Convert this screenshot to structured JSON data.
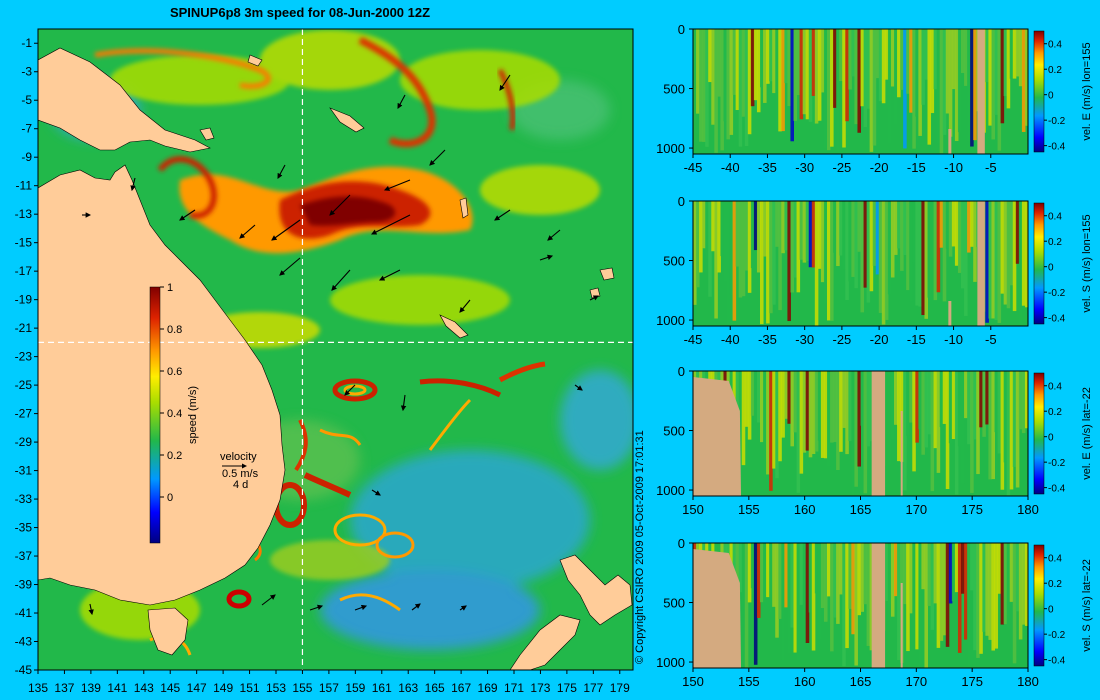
{
  "title": "SPINUP6p8 3m speed for 08-Jun-2000 12Z",
  "copyright": "© Copyright CSIRO 2009   05-Oct-2009 17:01:31",
  "map": {
    "lat_labels": [
      "-1",
      "-3",
      "-5",
      "-7",
      "-9",
      "-11",
      "-13",
      "-15",
      "-17",
      "-19",
      "-21",
      "-23",
      "-25",
      "-27",
      "-29",
      "-31",
      "-33",
      "-35",
      "-37",
      "-39",
      "-41",
      "-43",
      "-45"
    ],
    "lon_labels": [
      "135",
      "137",
      "139",
      "141",
      "143",
      "145",
      "147",
      "149",
      "151",
      "153",
      "155",
      "157",
      "159",
      "161",
      "163",
      "165",
      "167",
      "169",
      "171",
      "173",
      "175",
      "177",
      "179"
    ],
    "lon_range": [
      135,
      180
    ],
    "lat_range": [
      -45,
      0
    ],
    "section_lon": 155,
    "section_lat": -22,
    "colorbar": {
      "label": "speed (m/s)",
      "ticks": [
        "1",
        "0.8",
        "0.6",
        "0.4",
        "0.2",
        "0"
      ],
      "range": [
        0,
        1
      ]
    },
    "velocity_key": {
      "title": "velocity",
      "speed": "0.5 m/s",
      "duration": "4 d"
    },
    "colors": {
      "land": "#ffcc99",
      "background": "#00ccff",
      "ocean_base": "#22b84a"
    }
  },
  "sections": [
    {
      "id": "vel-e-lon155",
      "ylabel": "vel. E (m/s)  lon=155",
      "x_labels": [
        "-45",
        "-40",
        "-35",
        "-30",
        "-25",
        "-20",
        "-15",
        "-10",
        "-5"
      ],
      "x_values": [
        -45,
        -40,
        -35,
        -30,
        -25,
        -20,
        -15,
        -10,
        -5
      ],
      "x_range": [
        -45,
        0
      ],
      "y_labels": [
        "0",
        "500",
        "1000"
      ],
      "y_range": [
        0,
        1050
      ],
      "cbar_ticks": [
        "0.4",
        "0.2",
        "0",
        "-0.2",
        "-0.4"
      ],
      "cbar_range": [
        -0.45,
        0.5
      ]
    },
    {
      "id": "vel-s-lon155",
      "ylabel": "vel. S (m/s)  lon=155",
      "x_labels": [
        "-45",
        "-40",
        "-35",
        "-30",
        "-25",
        "-20",
        "-15",
        "-10",
        "-5"
      ],
      "x_values": [
        -45,
        -40,
        -35,
        -30,
        -25,
        -20,
        -15,
        -10,
        -5
      ],
      "x_range": [
        -45,
        0
      ],
      "y_labels": [
        "0",
        "500",
        "1000"
      ],
      "y_range": [
        0,
        1050
      ],
      "cbar_ticks": [
        "0.4",
        "0.2",
        "0",
        "-0.2",
        "-0.4"
      ],
      "cbar_range": [
        -0.45,
        0.5
      ]
    },
    {
      "id": "vel-e-lat-22",
      "ylabel": "vel. E (m/s)  lat=-22",
      "x_labels": [
        "150",
        "155",
        "160",
        "165",
        "170",
        "175",
        "180"
      ],
      "x_values": [
        150,
        155,
        160,
        165,
        170,
        175,
        180
      ],
      "x_range": [
        150,
        180
      ],
      "y_labels": [
        "0",
        "500",
        "1000"
      ],
      "y_range": [
        0,
        1050
      ],
      "cbar_ticks": [
        "0.4",
        "0.2",
        "0",
        "-0.2",
        "-0.4"
      ],
      "cbar_range": [
        -0.45,
        0.5
      ]
    },
    {
      "id": "vel-s-lat-22",
      "ylabel": "vel. S (m/s)  lat=-22",
      "x_labels": [
        "150",
        "155",
        "160",
        "165",
        "170",
        "175",
        "180"
      ],
      "x_values": [
        150,
        155,
        160,
        165,
        170,
        175,
        180
      ],
      "x_range": [
        150,
        180
      ],
      "y_labels": [
        "0",
        "500",
        "1000"
      ],
      "y_range": [
        0,
        1050
      ],
      "cbar_ticks": [
        "0.4",
        "0.2",
        "0",
        "-0.2",
        "-0.4"
      ],
      "cbar_range": [
        -0.45,
        0.5
      ]
    }
  ]
}
